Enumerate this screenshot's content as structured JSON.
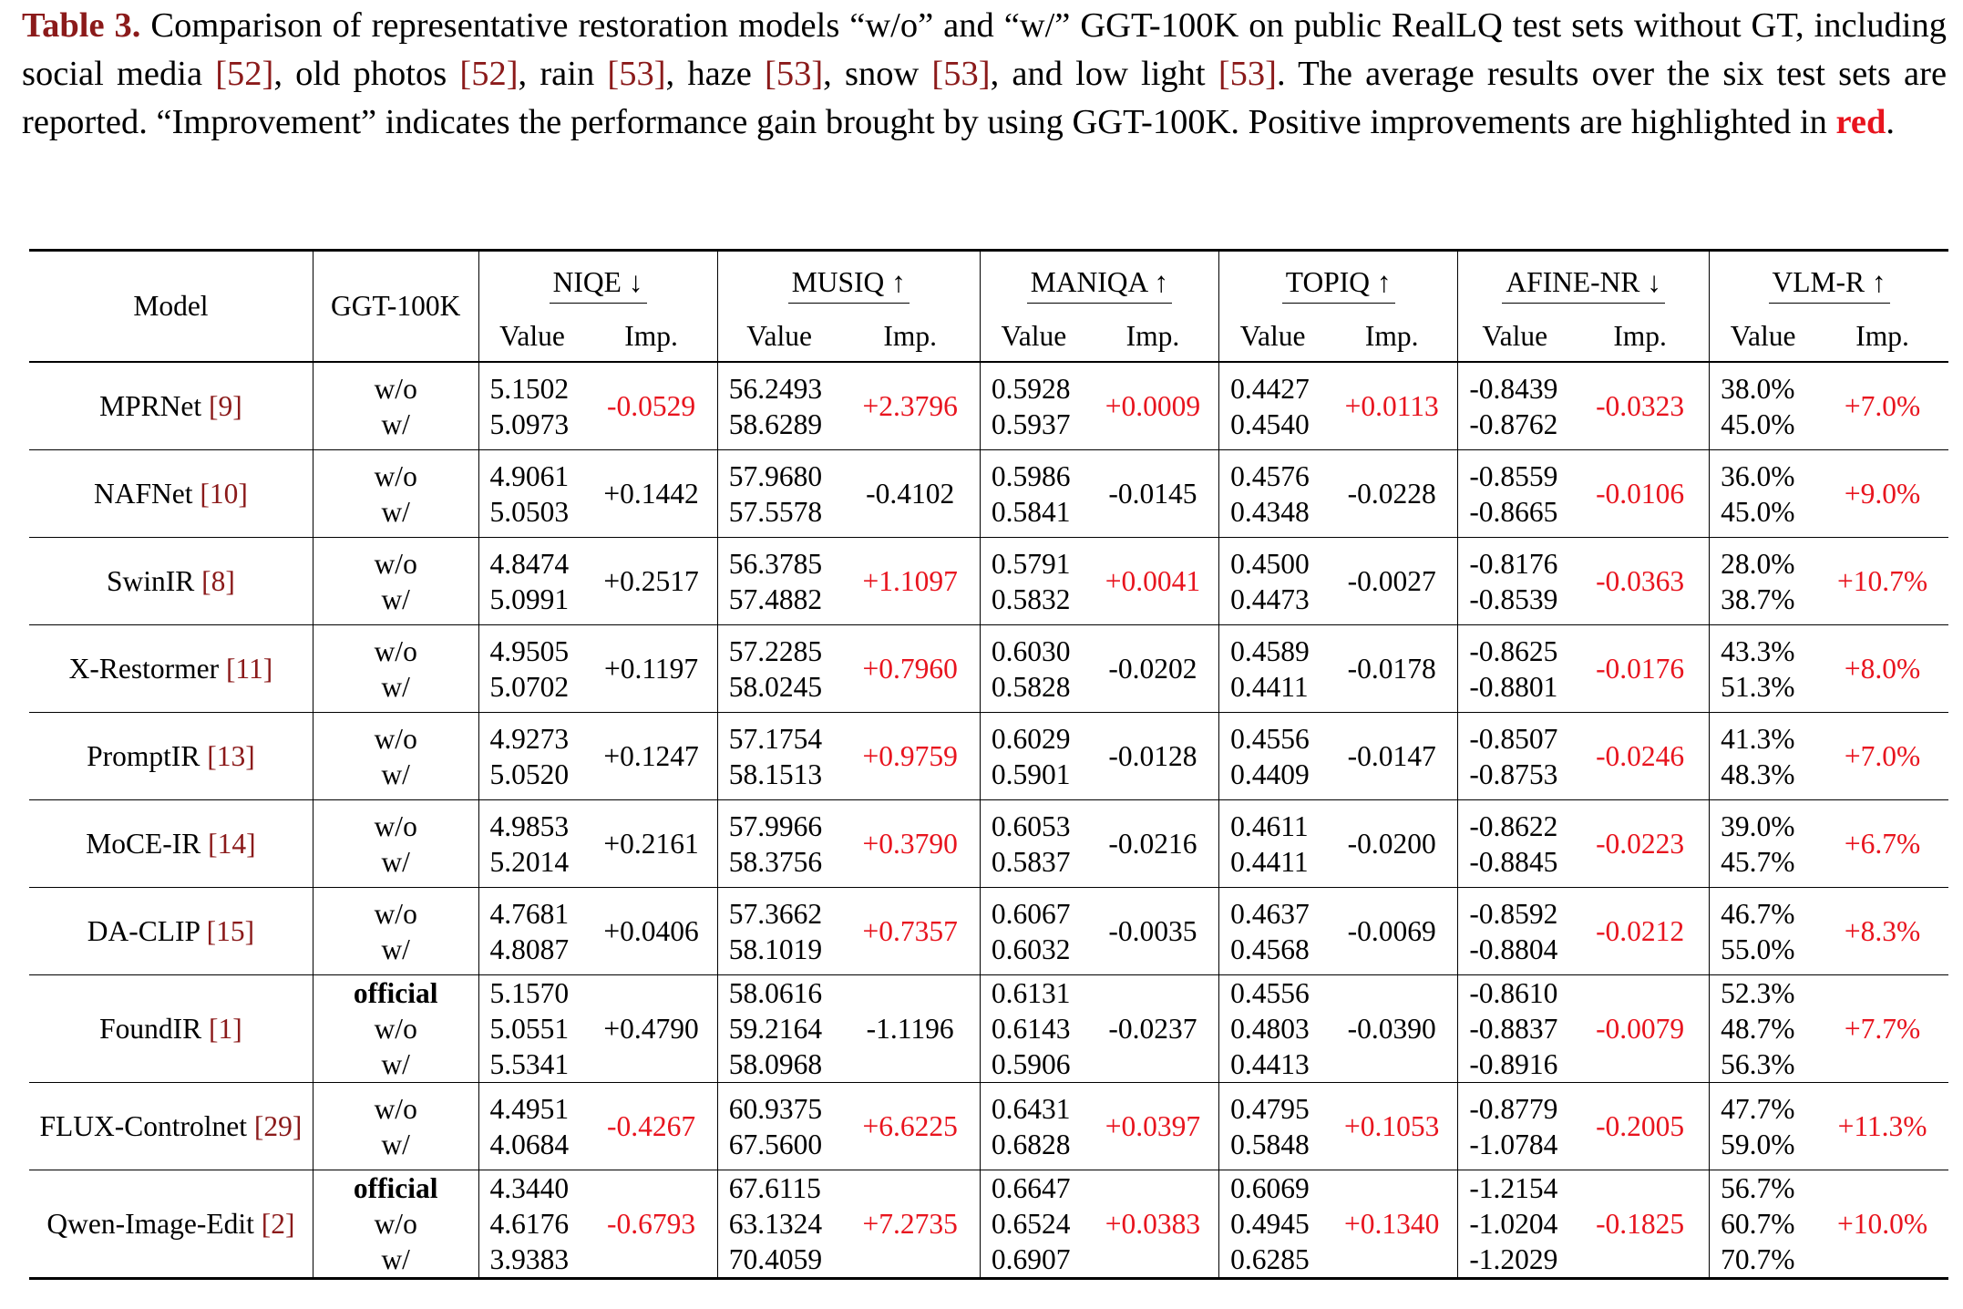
{
  "caption": {
    "label": "Table 3.",
    "segments": [
      {
        "t": " Comparison of representative restoration models “w/o” and “w/” GGT-100K on public RealLQ test sets without GT, including social media ",
        "s": ""
      },
      {
        "t": "[52]",
        "s": "cite"
      },
      {
        "t": ", old photos ",
        "s": ""
      },
      {
        "t": "[52]",
        "s": "cite"
      },
      {
        "t": ", rain ",
        "s": ""
      },
      {
        "t": "[53]",
        "s": "cite"
      },
      {
        "t": ", haze ",
        "s": ""
      },
      {
        "t": "[53]",
        "s": "cite"
      },
      {
        "t": ", snow ",
        "s": ""
      },
      {
        "t": "[53]",
        "s": "cite"
      },
      {
        "t": ", and low light ",
        "s": ""
      },
      {
        "t": "[53]",
        "s": "cite"
      },
      {
        "t": ". The average results over the six test sets are reported. “Improvement” indicates the performance gain brought by using GGT-100K. Positive improvements are highlighted in ",
        "s": ""
      },
      {
        "t": "red",
        "s": "red"
      },
      {
        "t": ".",
        "s": ""
      }
    ]
  },
  "table": {
    "col_model": "Model",
    "col_ggt": "GGT-100K",
    "sub_value": "Value",
    "sub_imp": "Imp.",
    "metrics": [
      "NIQE ↓",
      "MUSIQ ↑",
      "MANIQA ↑",
      "TOPIQ ↑",
      "AFINE-NR ↓",
      "VLM-R ↑"
    ],
    "rows": [
      {
        "model": "MPRNet",
        "cite": "[9]",
        "ggt": [
          "w/o",
          "w/"
        ],
        "cells": [
          {
            "v": [
              "5.1502",
              "5.0973"
            ],
            "imp": "-0.0529",
            "pos": true
          },
          {
            "v": [
              "56.2493",
              "58.6289"
            ],
            "imp": "+2.3796",
            "pos": true
          },
          {
            "v": [
              "0.5928",
              "0.5937"
            ],
            "imp": "+0.0009",
            "pos": true
          },
          {
            "v": [
              "0.4427",
              "0.4540"
            ],
            "imp": "+0.0113",
            "pos": true
          },
          {
            "v": [
              "-0.8439",
              "-0.8762"
            ],
            "imp": "-0.0323",
            "pos": true
          },
          {
            "v": [
              "38.0%",
              "45.0%"
            ],
            "imp": "+7.0%",
            "pos": true
          }
        ]
      },
      {
        "model": "NAFNet",
        "cite": "[10]",
        "ggt": [
          "w/o",
          "w/"
        ],
        "cells": [
          {
            "v": [
              "4.9061",
              "5.0503"
            ],
            "imp": "+0.1442",
            "pos": false
          },
          {
            "v": [
              "57.9680",
              "57.5578"
            ],
            "imp": "-0.4102",
            "pos": false
          },
          {
            "v": [
              "0.5986",
              "0.5841"
            ],
            "imp": "-0.0145",
            "pos": false
          },
          {
            "v": [
              "0.4576",
              "0.4348"
            ],
            "imp": "-0.0228",
            "pos": false
          },
          {
            "v": [
              "-0.8559",
              "-0.8665"
            ],
            "imp": "-0.0106",
            "pos": true
          },
          {
            "v": [
              "36.0%",
              "45.0%"
            ],
            "imp": "+9.0%",
            "pos": true
          }
        ]
      },
      {
        "model": "SwinIR",
        "cite": "[8]",
        "ggt": [
          "w/o",
          "w/"
        ],
        "cells": [
          {
            "v": [
              "4.8474",
              "5.0991"
            ],
            "imp": "+0.2517",
            "pos": false
          },
          {
            "v": [
              "56.3785",
              "57.4882"
            ],
            "imp": "+1.1097",
            "pos": true
          },
          {
            "v": [
              "0.5791",
              "0.5832"
            ],
            "imp": "+0.0041",
            "pos": true
          },
          {
            "v": [
              "0.4500",
              "0.4473"
            ],
            "imp": "-0.0027",
            "pos": false
          },
          {
            "v": [
              "-0.8176",
              "-0.8539"
            ],
            "imp": "-0.0363",
            "pos": true
          },
          {
            "v": [
              "28.0%",
              "38.7%"
            ],
            "imp": "+10.7%",
            "pos": true
          }
        ]
      },
      {
        "model": "X-Restormer",
        "cite": "[11]",
        "ggt": [
          "w/o",
          "w/"
        ],
        "cells": [
          {
            "v": [
              "4.9505",
              "5.0702"
            ],
            "imp": "+0.1197",
            "pos": false
          },
          {
            "v": [
              "57.2285",
              "58.0245"
            ],
            "imp": "+0.7960",
            "pos": true
          },
          {
            "v": [
              "0.6030",
              "0.5828"
            ],
            "imp": "-0.0202",
            "pos": false
          },
          {
            "v": [
              "0.4589",
              "0.4411"
            ],
            "imp": "-0.0178",
            "pos": false
          },
          {
            "v": [
              "-0.8625",
              "-0.8801"
            ],
            "imp": "-0.0176",
            "pos": true
          },
          {
            "v": [
              "43.3%",
              "51.3%"
            ],
            "imp": "+8.0%",
            "pos": true
          }
        ]
      },
      {
        "model": "PromptIR",
        "cite": "[13]",
        "ggt": [
          "w/o",
          "w/"
        ],
        "cells": [
          {
            "v": [
              "4.9273",
              "5.0520"
            ],
            "imp": "+0.1247",
            "pos": false
          },
          {
            "v": [
              "57.1754",
              "58.1513"
            ],
            "imp": "+0.9759",
            "pos": true
          },
          {
            "v": [
              "0.6029",
              "0.5901"
            ],
            "imp": "-0.0128",
            "pos": false
          },
          {
            "v": [
              "0.4556",
              "0.4409"
            ],
            "imp": "-0.0147",
            "pos": false
          },
          {
            "v": [
              "-0.8507",
              "-0.8753"
            ],
            "imp": "-0.0246",
            "pos": true
          },
          {
            "v": [
              "41.3%",
              "48.3%"
            ],
            "imp": "+7.0%",
            "pos": true
          }
        ]
      },
      {
        "model": "MoCE-IR",
        "cite": "[14]",
        "ggt": [
          "w/o",
          "w/"
        ],
        "cells": [
          {
            "v": [
              "4.9853",
              "5.2014"
            ],
            "imp": "+0.2161",
            "pos": false
          },
          {
            "v": [
              "57.9966",
              "58.3756"
            ],
            "imp": "+0.3790",
            "pos": true
          },
          {
            "v": [
              "0.6053",
              "0.5837"
            ],
            "imp": "-0.0216",
            "pos": false
          },
          {
            "v": [
              "0.4611",
              "0.4411"
            ],
            "imp": "-0.0200",
            "pos": false
          },
          {
            "v": [
              "-0.8622",
              "-0.8845"
            ],
            "imp": "-0.0223",
            "pos": true
          },
          {
            "v": [
              "39.0%",
              "45.7%"
            ],
            "imp": "+6.7%",
            "pos": true
          }
        ]
      },
      {
        "model": "DA-CLIP",
        "cite": "[15]",
        "ggt": [
          "w/o",
          "w/"
        ],
        "cells": [
          {
            "v": [
              "4.7681",
              "4.8087"
            ],
            "imp": "+0.0406",
            "pos": false
          },
          {
            "v": [
              "57.3662",
              "58.1019"
            ],
            "imp": "+0.7357",
            "pos": true
          },
          {
            "v": [
              "0.6067",
              "0.6032"
            ],
            "imp": "-0.0035",
            "pos": false
          },
          {
            "v": [
              "0.4637",
              "0.4568"
            ],
            "imp": "-0.0069",
            "pos": false
          },
          {
            "v": [
              "-0.8592",
              "-0.8804"
            ],
            "imp": "-0.0212",
            "pos": true
          },
          {
            "v": [
              "46.7%",
              "55.0%"
            ],
            "imp": "+8.3%",
            "pos": true
          }
        ]
      },
      {
        "model": "FoundIR",
        "cite": "[1]",
        "ggt": [
          "official",
          "w/o",
          "w/"
        ],
        "cells": [
          {
            "v": [
              "5.1570",
              "5.0551",
              "5.5341"
            ],
            "imp": "+0.4790",
            "pos": false
          },
          {
            "v": [
              "58.0616",
              "59.2164",
              "58.0968"
            ],
            "imp": "-1.1196",
            "pos": false
          },
          {
            "v": [
              "0.6131",
              "0.6143",
              "0.5906"
            ],
            "imp": "-0.0237",
            "pos": false
          },
          {
            "v": [
              "0.4556",
              "0.4803",
              "0.4413"
            ],
            "imp": "-0.0390",
            "pos": false
          },
          {
            "v": [
              "-0.8610",
              "-0.8837",
              "-0.8916"
            ],
            "imp": "-0.0079",
            "pos": true
          },
          {
            "v": [
              "52.3%",
              "48.7%",
              "56.3%"
            ],
            "imp": "+7.7%",
            "pos": true
          }
        ]
      },
      {
        "model": "FLUX-Controlnet",
        "cite": "[29]",
        "ggt": [
          "w/o",
          "w/"
        ],
        "cells": [
          {
            "v": [
              "4.4951",
              "4.0684"
            ],
            "imp": "-0.4267",
            "pos": true
          },
          {
            "v": [
              "60.9375",
              "67.5600"
            ],
            "imp": "+6.6225",
            "pos": true
          },
          {
            "v": [
              "0.6431",
              "0.6828"
            ],
            "imp": "+0.0397",
            "pos": true
          },
          {
            "v": [
              "0.4795",
              "0.5848"
            ],
            "imp": "+0.1053",
            "pos": true
          },
          {
            "v": [
              "-0.8779",
              "-1.0784"
            ],
            "imp": "-0.2005",
            "pos": true
          },
          {
            "v": [
              "47.7%",
              "59.0%"
            ],
            "imp": "+11.3%",
            "pos": true
          }
        ]
      },
      {
        "model": "Qwen-Image-Edit",
        "cite": "[2]",
        "ggt": [
          "official",
          "w/o",
          "w/"
        ],
        "cells": [
          {
            "v": [
              "4.3440",
              "4.6176",
              "3.9383"
            ],
            "imp": "-0.6793",
            "pos": true
          },
          {
            "v": [
              "67.6115",
              "63.1324",
              "70.4059"
            ],
            "imp": "+7.2735",
            "pos": true
          },
          {
            "v": [
              "0.6647",
              "0.6524",
              "0.6907"
            ],
            "imp": "+0.0383",
            "pos": true
          },
          {
            "v": [
              "0.6069",
              "0.4945",
              "0.6285"
            ],
            "imp": "+0.1340",
            "pos": true
          },
          {
            "v": [
              "-1.2154",
              "-1.0204",
              "-1.2029"
            ],
            "imp": "-0.1825",
            "pos": true
          },
          {
            "v": [
              "56.7%",
              "60.7%",
              "70.7%"
            ],
            "imp": "+10.0%",
            "pos": true
          }
        ]
      }
    ]
  }
}
